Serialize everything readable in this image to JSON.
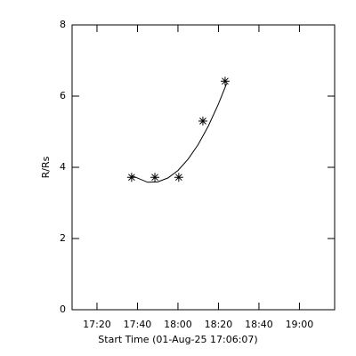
{
  "chart_data": {
    "type": "scatter",
    "xlabel": "Start Time (01-Aug-25 17:06:07)",
    "ylabel": "R/Rs",
    "x": [
      37.1,
      48.6,
      60.4,
      72.3,
      83.3
    ],
    "values": [
      3.72,
      3.72,
      3.72,
      5.3,
      6.42
    ],
    "fit": {
      "x": [
        37,
        45,
        50,
        55,
        60,
        65,
        70,
        75,
        80,
        84
      ],
      "values": [
        3.77,
        3.58,
        3.59,
        3.7,
        3.91,
        4.23,
        4.64,
        5.16,
        5.78,
        6.35
      ]
    },
    "color": "#000000",
    "xlim": [
      7.7,
      137.4
    ],
    "ylim": [
      0,
      8
    ],
    "xticks": [
      {
        "value": 20,
        "label": "17:20"
      },
      {
        "value": 40,
        "label": "17:40"
      },
      {
        "value": 60,
        "label": "18:00"
      },
      {
        "value": 80,
        "label": "18:20"
      },
      {
        "value": 100,
        "label": "18:40"
      },
      {
        "value": 120,
        "label": "19:00"
      }
    ],
    "yticks": [
      0,
      2,
      4,
      6,
      8
    ]
  }
}
